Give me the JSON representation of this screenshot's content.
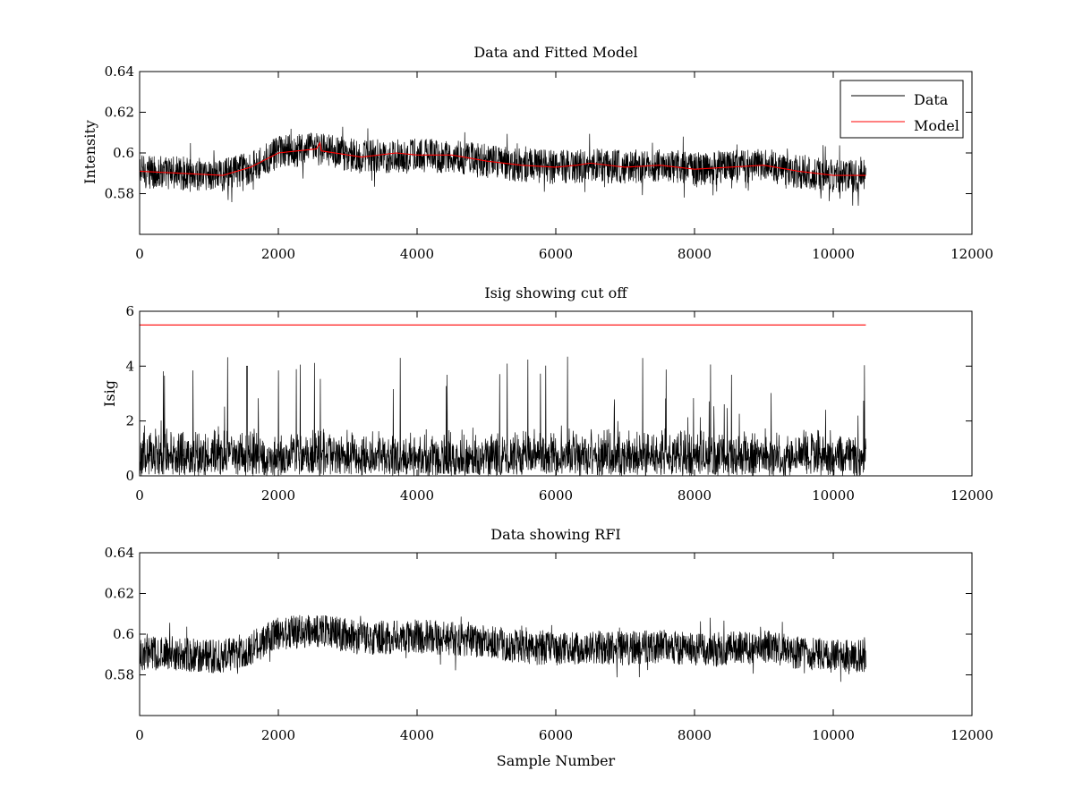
{
  "chart_data": [
    {
      "type": "line",
      "title": "Data and Fitted Model",
      "xlabel": "",
      "ylabel": "Intensity",
      "xlim": [
        0,
        12000
      ],
      "ylim": [
        0.56,
        0.64
      ],
      "xticks": [
        0,
        2000,
        4000,
        6000,
        8000,
        10000,
        12000
      ],
      "xtick_labels": [
        "0",
        "2000",
        "4000",
        "6000",
        "8000",
        "10000",
        "12000"
      ],
      "yticks": [
        0.58,
        0.6,
        0.62,
        0.64
      ],
      "ytick_labels": [
        "0.58",
        "0.6",
        "0.62",
        "0.64"
      ],
      "legend": {
        "placement": "top-right",
        "entries": [
          {
            "name": "Data",
            "color": "#000000"
          },
          {
            "name": "Model",
            "color": "#ff0000"
          }
        ]
      },
      "series": [
        {
          "name": "Data",
          "color": "#000000",
          "kind": "noisy",
          "x_range": [
            0,
            10470
          ],
          "n_points": 10470,
          "noise_band": 0.012,
          "spike_max": 0.016,
          "baseline": {
            "x": [
              0,
              1200,
              1600,
              2000,
              2600,
              3200,
              4000,
              4500,
              5000,
              5500,
              6000,
              6500,
              7000,
              7500,
              8000,
              8500,
              9000,
              9500,
              10000,
              10470
            ],
            "y": [
              0.591,
              0.589,
              0.593,
              0.6,
              0.602,
              0.598,
              0.599,
              0.598,
              0.596,
              0.594,
              0.593,
              0.594,
              0.593,
              0.594,
              0.592,
              0.593,
              0.594,
              0.591,
              0.589,
              0.589
            ]
          }
        },
        {
          "name": "Model",
          "color": "#ff0000",
          "kind": "line",
          "x": [
            0,
            1200,
            1600,
            2000,
            2550,
            2600,
            2620,
            3200,
            3700,
            4000,
            4500,
            5000,
            5500,
            6000,
            6300,
            6500,
            7000,
            7500,
            8000,
            8500,
            9000,
            9500,
            10000,
            10470
          ],
          "y": [
            0.591,
            0.589,
            0.593,
            0.6,
            0.602,
            0.605,
            0.601,
            0.598,
            0.6,
            0.599,
            0.599,
            0.596,
            0.594,
            0.593,
            0.594,
            0.595,
            0.593,
            0.594,
            0.592,
            0.593,
            0.594,
            0.591,
            0.589,
            0.589
          ]
        }
      ]
    },
    {
      "type": "line",
      "title": "Isig showing cut off",
      "xlabel": "",
      "ylabel": "Isig",
      "xlim": [
        0,
        12000
      ],
      "ylim": [
        0,
        6
      ],
      "xticks": [
        0,
        2000,
        4000,
        6000,
        8000,
        10000,
        12000
      ],
      "xtick_labels": [
        "0",
        "2000",
        "4000",
        "6000",
        "8000",
        "10000",
        "12000"
      ],
      "yticks": [
        0,
        2,
        4,
        6
      ],
      "ytick_labels": [
        "0",
        "2",
        "4",
        "6"
      ],
      "series": [
        {
          "name": "",
          "color": "#000000",
          "kind": "abs-noise",
          "x_range": [
            0,
            10470
          ],
          "n_points": 10470,
          "typical_max": 1.8,
          "spike_max": 4.0
        },
        {
          "name": "",
          "color": "#ff0000",
          "kind": "line",
          "x": [
            0,
            10470
          ],
          "y": [
            5.5,
            5.5
          ]
        }
      ]
    },
    {
      "type": "line",
      "title": "Data showing RFI",
      "xlabel": "Sample Number",
      "ylabel": "",
      "xlim": [
        0,
        12000
      ],
      "ylim": [
        0.56,
        0.64
      ],
      "xticks": [
        0,
        2000,
        4000,
        6000,
        8000,
        10000,
        12000
      ],
      "xtick_labels": [
        "0",
        "2000",
        "4000",
        "6000",
        "8000",
        "10000",
        "12000"
      ],
      "yticks": [
        0.58,
        0.6,
        0.62,
        0.64
      ],
      "ytick_labels": [
        "0.58",
        "0.6",
        "0.62",
        "0.64"
      ],
      "series": [
        {
          "name": "",
          "color": "#000000",
          "kind": "noisy",
          "x_range": [
            0,
            10470
          ],
          "n_points": 10470,
          "noise_band": 0.012,
          "spike_max": 0.016,
          "baseline": {
            "x": [
              0,
              1200,
              1600,
              2000,
              2600,
              3200,
              4000,
              4500,
              5000,
              5500,
              6000,
              6500,
              7000,
              7500,
              8000,
              8500,
              9000,
              9500,
              10000,
              10470
            ],
            "y": [
              0.591,
              0.589,
              0.593,
              0.6,
              0.602,
              0.598,
              0.599,
              0.598,
              0.596,
              0.594,
              0.593,
              0.594,
              0.593,
              0.594,
              0.592,
              0.593,
              0.594,
              0.591,
              0.589,
              0.589
            ]
          }
        }
      ]
    }
  ]
}
